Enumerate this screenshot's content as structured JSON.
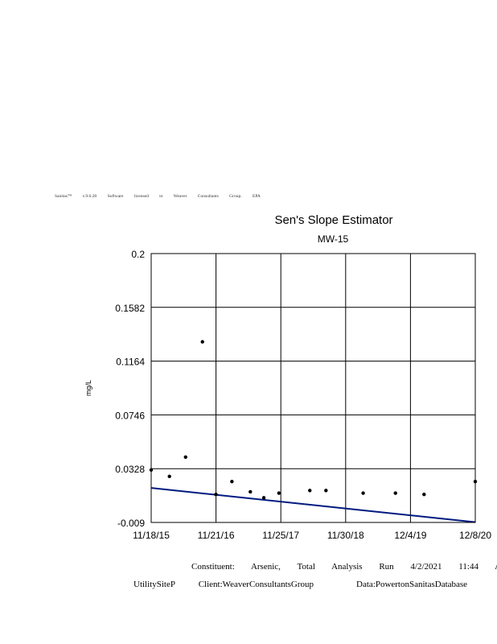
{
  "license_text": [
    "Sanitas™",
    "v.9.6.28",
    "Software",
    "licensed",
    "to",
    "Weaver",
    "Consultants",
    "Group.",
    "EPA"
  ],
  "chart_data": {
    "type": "scatter",
    "title": "Sen's Slope Estimator",
    "subtitle": "MW-15",
    "xlabel": "",
    "ylabel": "mg/L",
    "y_ticks": [
      "0.2",
      "0.1582",
      "0.1164",
      "0.0746",
      "0.0328",
      "-0.009"
    ],
    "ylim": [
      -0.009,
      0.2
    ],
    "x_ticks": [
      "11/18/15",
      "11/21/16",
      "11/25/17",
      "11/30/18",
      "12/4/19",
      "12/8/20"
    ],
    "xlim": [
      "2015-11-18",
      "2020-12-08"
    ],
    "grid": true,
    "series": [
      {
        "x": [
          "2015-11-18",
          "2016-03-01",
          "2016-06-01",
          "2016-09-05",
          "2016-11-21",
          "2017-02-20",
          "2017-06-05",
          "2017-08-21",
          "2017-11-15",
          "2018-05-10",
          "2018-08-10",
          "2019-03-10",
          "2019-09-10",
          "2020-02-20",
          "2020-12-08"
        ],
        "y": [
          0.0318,
          0.0268,
          0.0418,
          0.1314,
          0.0128,
          0.0228,
          0.0148,
          0.0102,
          0.0138,
          0.0158,
          0.0158,
          0.0138,
          0.0138,
          0.0128,
          0.0228
        ]
      }
    ],
    "trend_line": {
      "x": [
        "2015-11-18",
        "2020-12-08"
      ],
      "y": [
        0.0178,
        -0.0088
      ],
      "color": "#001a80"
    }
  },
  "footer": {
    "line1": [
      "Constituent:",
      "Arsenic,",
      "Total",
      "Analysis",
      "Run",
      "4/2/2021",
      "11:44",
      "AM"
    ],
    "line2": [
      "UtilitySiteP",
      "Client:WeaverConsultantsGroup",
      "Data:PowertonSanitasDatabase"
    ]
  }
}
